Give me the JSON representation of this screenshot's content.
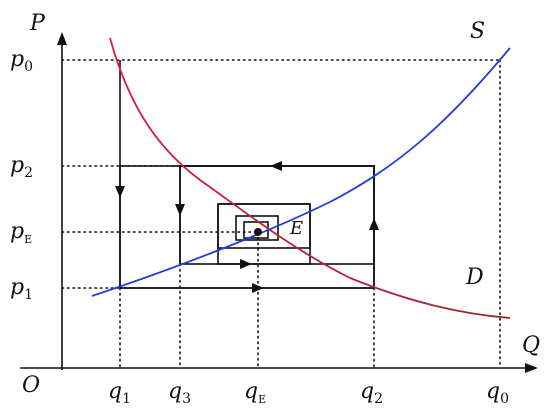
{
  "axes": {
    "y_label": "P",
    "x_label": "Q",
    "origin_label": "O"
  },
  "curves": {
    "supply_label": "S",
    "demand_label": "D",
    "supply_color": "#1f3fd1",
    "demand_color_top": "#e0193a",
    "demand_color_bottom": "#8a2e2e"
  },
  "equilibrium_label": "E",
  "price_labels": [
    {
      "base": "p",
      "sub": "0"
    },
    {
      "base": "p",
      "sub": "2"
    },
    {
      "base": "p",
      "sub": "E"
    },
    {
      "base": "p",
      "sub": "1"
    }
  ],
  "quantity_labels": [
    {
      "base": "q",
      "sub": "1"
    },
    {
      "base": "q",
      "sub": "3"
    },
    {
      "base": "q",
      "sub": "E"
    },
    {
      "base": "q",
      "sub": "2"
    },
    {
      "base": "q",
      "sub": "0"
    }
  ]
}
